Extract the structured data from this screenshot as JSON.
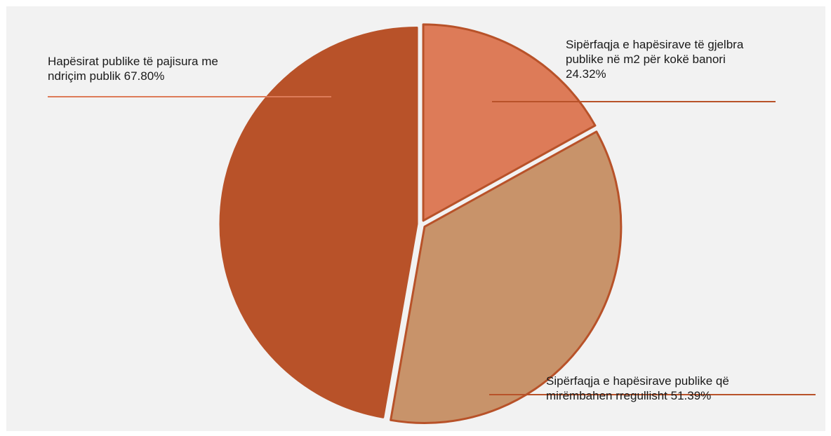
{
  "chart_data": {
    "type": "pie",
    "categories": [
      "Sipërfaqja e hapësirave të gjelbra publike në m2 për kokë banori",
      "Sipërfaqja e hapësirave publike që mirëmbahen rregullisht",
      "Hapësirat publike të pajisura me ndriçim publik"
    ],
    "values": [
      24.32,
      51.39,
      67.8
    ],
    "data_labels": [
      "Sipërfaqja e hapësirave të gjelbra\npublike në m2 për kokë banori\n24.32%",
      "Sipërfaqja e hapësirave publike që\nmirëmbahen rregullisht 51.39%",
      "Hapësirat publike të pajisura me\nndriçim publik 67.80%"
    ],
    "colors": [
      "#dd7b58",
      "#c8936a",
      "#b85229"
    ],
    "border_color": "#b85229",
    "title": "",
    "legend": "none",
    "exploded": true
  }
}
